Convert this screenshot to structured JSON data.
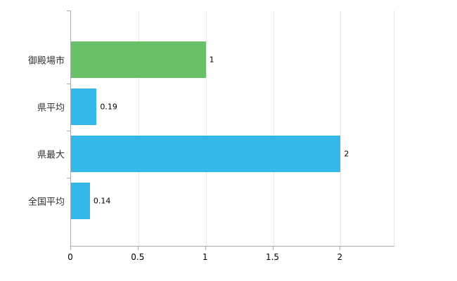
{
  "chart_data": {
    "type": "bar",
    "orientation": "horizontal",
    "title": "",
    "xlabel": "",
    "ylabel": "",
    "categories": [
      "御殿場市",
      "県平均",
      "県最大",
      "全国平均"
    ],
    "values": [
      1,
      0.19,
      2,
      0.14
    ],
    "value_labels": [
      "1",
      "0.19",
      "2",
      "0.14"
    ],
    "bar_colors": [
      "#6abf69",
      "#33b8e8",
      "#33b8e8",
      "#33b8e8"
    ],
    "xlim": [
      0,
      2.4
    ],
    "x_ticks": [
      0,
      0.5,
      1,
      1.5,
      2
    ],
    "x_tick_labels": [
      "0",
      "0.5",
      "1",
      "1.5",
      "2"
    ],
    "grid": true,
    "legend": "none",
    "background": "#ffffff",
    "gridline_color": "#e6e6e6",
    "axis_color": "#ababab",
    "text_color": "#000000"
  }
}
